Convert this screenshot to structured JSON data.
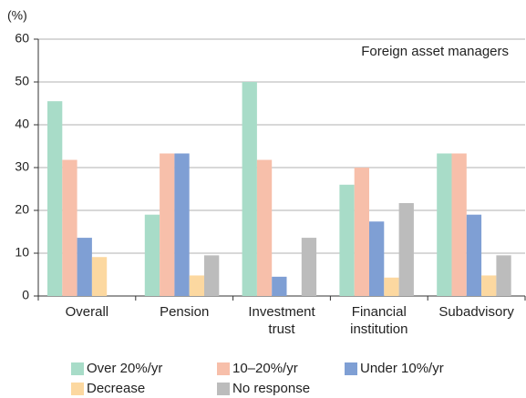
{
  "chart_data": {
    "type": "bar",
    "y_label": "(%)",
    "annotation": "Foreign asset managers",
    "categories": [
      "Overall",
      "Pension",
      "Investment trust",
      "Financial institution",
      "Subadvisory"
    ],
    "series": [
      {
        "name": "Over 20%/yr",
        "color": "#a8dcc8",
        "values": [
          45.5,
          19,
          50,
          26,
          33.3
        ]
      },
      {
        "name": "10–20%/yr",
        "color": "#f7bfaa",
        "values": [
          31.8,
          33.3,
          31.8,
          30,
          33.3
        ]
      },
      {
        "name": "Under 10%/yr",
        "color": "#7f9fd4",
        "values": [
          13.6,
          33.3,
          4.5,
          17.4,
          19
        ]
      },
      {
        "name": "Decrease",
        "color": "#fcd8a0",
        "values": [
          9.1,
          4.8,
          0,
          4.3,
          4.8
        ]
      },
      {
        "name": "No response",
        "color": "#bcbcbc",
        "values": [
          0,
          9.5,
          13.6,
          21.7,
          9.5
        ]
      }
    ],
    "ylim": [
      0,
      60
    ],
    "yticks": [
      0,
      10,
      20,
      30,
      40,
      50,
      60
    ],
    "grid": true
  }
}
